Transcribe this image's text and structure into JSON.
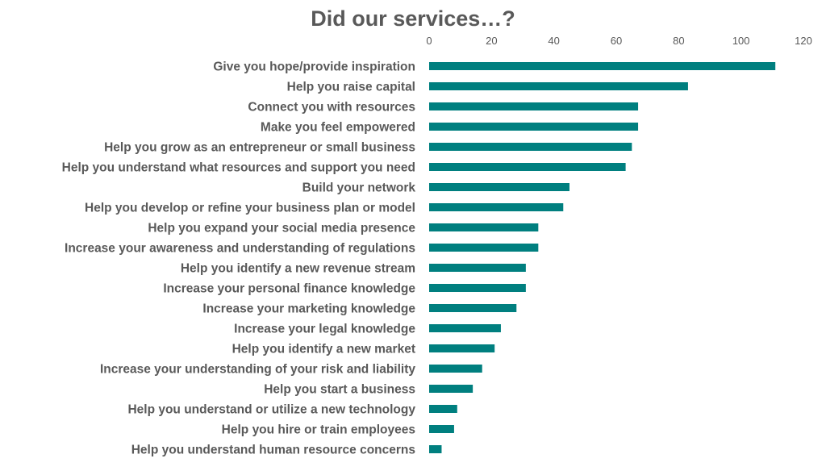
{
  "chart_data": {
    "type": "bar",
    "orientation": "horizontal",
    "title": "Did our services…?",
    "xlim": [
      0,
      120
    ],
    "xticks": [
      0,
      20,
      40,
      60,
      80,
      100,
      120
    ],
    "x_axis_position": "top",
    "grid": false,
    "legend": "none",
    "bar_color": "#007F7F",
    "categories": [
      "Give you hope/provide inspiration",
      "Help you raise capital",
      "Connect you with resources",
      "Make you feel empowered",
      "Help you grow as an entrepreneur or small business",
      "Help you understand what resources and support you need",
      "Build your network",
      "Help you develop or refine your business plan or model",
      "Help you expand your social media presence",
      "Increase your awareness and understanding of regulations",
      "Help you identify a new revenue stream ",
      "Increase your personal finance knowledge",
      "Increase your marketing knowledge",
      "Increase your legal knowledge",
      "Help you identify a new market",
      "Increase your understanding of your risk and liability",
      "Help you start a business",
      "Help you understand or utilize a new technology",
      "Help you hire or train employees",
      "Help you understand human resource concerns"
    ],
    "values": [
      111,
      83,
      67,
      67,
      65,
      63,
      45,
      43,
      35,
      35,
      31,
      31,
      28,
      23,
      21,
      17,
      14,
      9,
      8,
      4
    ]
  }
}
